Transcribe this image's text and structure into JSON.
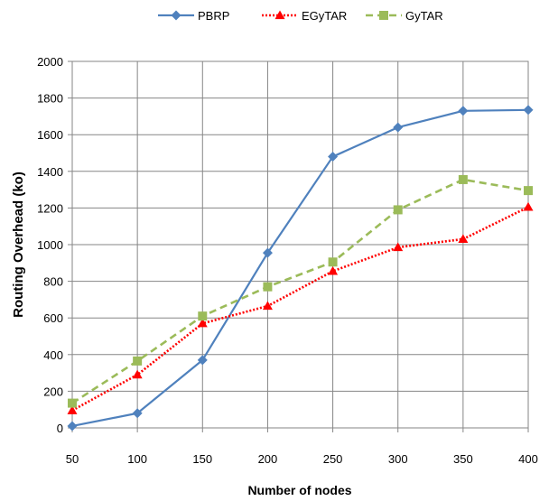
{
  "chart_data": {
    "type": "line",
    "title": "",
    "xlabel": "Number of nodes",
    "ylabel": "Routing Overhead (ko)",
    "x": [
      50,
      100,
      150,
      200,
      250,
      300,
      350,
      400
    ],
    "xlim": [
      50,
      400
    ],
    "ylim": [
      0,
      2000
    ],
    "yticks": [
      0,
      200,
      400,
      600,
      800,
      1000,
      1200,
      1400,
      1600,
      1800,
      2000
    ],
    "grid": true,
    "legend_position": "top",
    "series": [
      {
        "name": "PBRP",
        "color": "#4f81bd",
        "line_style": "solid",
        "marker": "diamond",
        "values": [
          10,
          80,
          370,
          955,
          1480,
          1640,
          1730,
          1735
        ]
      },
      {
        "name": "EGyTAR",
        "color": "#ff0000",
        "line_style": "dotted",
        "marker": "triangle",
        "values": [
          95,
          290,
          570,
          665,
          855,
          985,
          1030,
          1205
        ]
      },
      {
        "name": "GyTAR",
        "color": "#9bbb59",
        "line_style": "dashed",
        "marker": "square",
        "values": [
          135,
          365,
          610,
          770,
          905,
          1190,
          1355,
          1295
        ]
      }
    ]
  }
}
